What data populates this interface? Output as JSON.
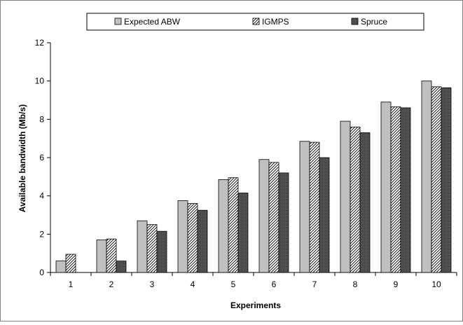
{
  "chart_data": {
    "type": "bar",
    "xlabel": "Experiments",
    "ylabel": "Available bandwidth (Mb/s)",
    "ylim": [
      0,
      12
    ],
    "yticks": [
      0,
      2,
      4,
      6,
      8,
      10,
      12
    ],
    "categories": [
      "1",
      "2",
      "3",
      "4",
      "5",
      "6",
      "7",
      "8",
      "9",
      "10"
    ],
    "series": [
      {
        "name": "Expected ABW",
        "pattern": "solid-gray",
        "color": "#c0c0c0",
        "values": [
          0.6,
          1.7,
          2.7,
          3.75,
          4.85,
          5.9,
          6.85,
          7.9,
          8.9,
          10.0
        ]
      },
      {
        "name": "IGMPS",
        "pattern": "diagonal-hatch",
        "color": "#ffffff",
        "values": [
          0.95,
          1.75,
          2.5,
          3.6,
          4.95,
          5.75,
          6.8,
          7.6,
          8.65,
          9.7
        ]
      },
      {
        "name": "Spruce",
        "pattern": "dark-dotted",
        "color": "#555555",
        "values": [
          0,
          0.6,
          2.15,
          3.25,
          4.15,
          5.2,
          6.0,
          7.3,
          8.6,
          9.65
        ]
      }
    ],
    "legend": {
      "placement": "top"
    },
    "grid": false
  }
}
